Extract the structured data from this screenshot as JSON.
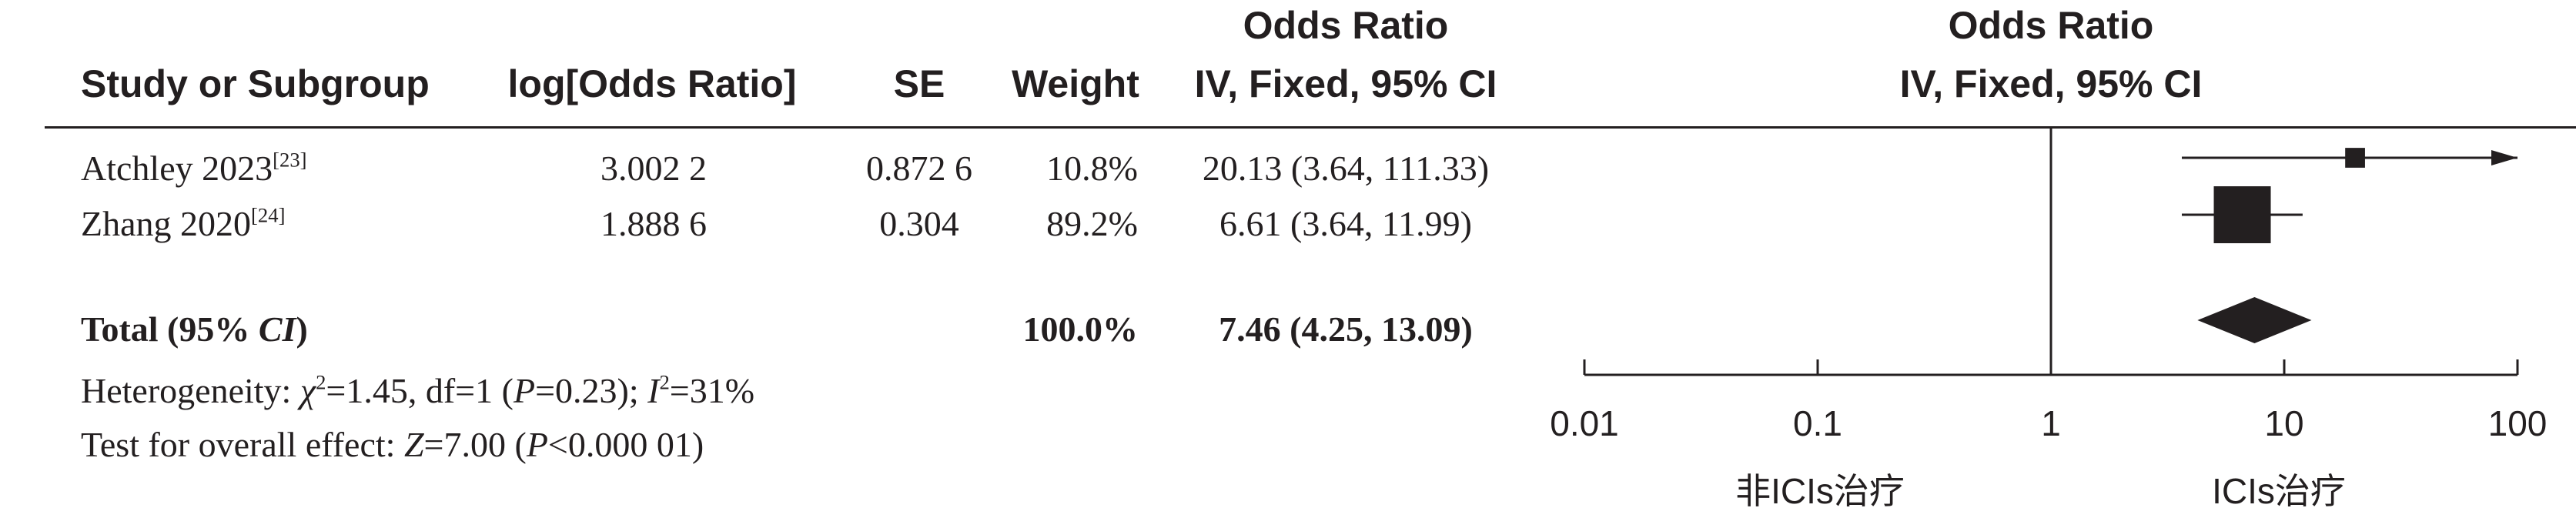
{
  "header": {
    "study_col": "Study or Subgroup",
    "logor_col": "log[Odds Ratio]",
    "se_col": "SE",
    "weight_col": "Weight",
    "or_col_title": "Odds Ratio",
    "or_col_method": "IV, Fixed, 95% CI",
    "plot_title": "Odds Ratio",
    "plot_method": "IV, Fixed, 95% CI"
  },
  "studies": [
    {
      "name": "Atchley 2023",
      "ref": "[23]",
      "log_or": "3.002 2",
      "se": "0.872 6",
      "weight": "10.8%",
      "or_ci": "20.13 (3.64, 111.33)"
    },
    {
      "name": "Zhang 2020",
      "ref": "[24]",
      "log_or": "1.888 6",
      "se": "0.304",
      "weight": "89.2%",
      "or_ci": "6.61 (3.64, 11.99)"
    }
  ],
  "total": {
    "label_pre": "Total (95% ",
    "label_ci": "CI",
    "label_post": ")",
    "weight": "100.0%",
    "or_ci": "7.46 (4.25, 13.09)"
  },
  "heterogeneity": {
    "prefix": "Heterogeneity: ",
    "chi_sym": "χ",
    "chi_val": "=1.45, df=1 (",
    "p_sym": "P",
    "p_val": "=0.23); ",
    "i_sym": "I",
    "i_val": "=31%"
  },
  "overall": {
    "prefix": "Test for overall effect: ",
    "z_sym": "Z",
    "z_val": "=7.00 (",
    "p_sym": "P",
    "p_val": "<0.000 01)"
  },
  "axis": {
    "ticks": [
      "0.01",
      "0.1",
      "1",
      "10",
      "100"
    ],
    "left_label": "非ICIs治疗",
    "right_label": "ICIs治疗"
  },
  "colors": {
    "ink": "#231f20",
    "background": "#ffffff"
  },
  "chart_data": {
    "type": "forest",
    "scale": "log",
    "xlim": [
      0.01,
      100
    ],
    "null_line": 1,
    "studies": [
      {
        "name": "Atchley 2023",
        "or": 20.13,
        "ci_low": 3.64,
        "ci_high": 111.33,
        "weight": 10.8,
        "arrow_right": true
      },
      {
        "name": "Zhang 2020",
        "or": 6.61,
        "ci_low": 3.64,
        "ci_high": 11.99,
        "weight": 89.2,
        "arrow_right": false
      }
    ],
    "pooled": {
      "or": 7.46,
      "ci_low": 4.25,
      "ci_high": 13.09
    }
  }
}
